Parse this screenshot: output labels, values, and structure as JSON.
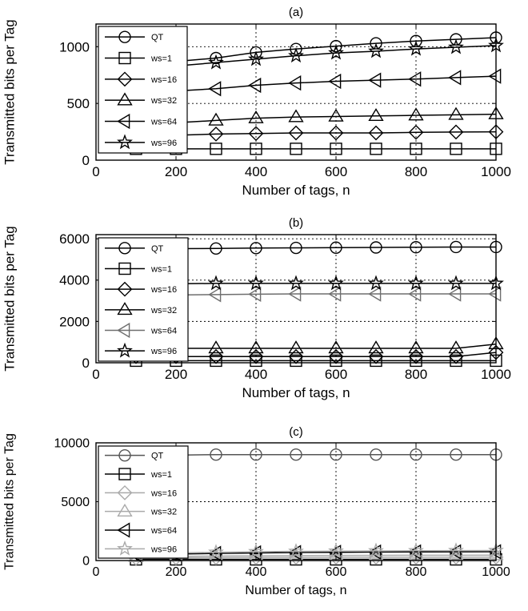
{
  "chart_data": [
    {
      "type": "line",
      "title": "(a)",
      "xlabel": "Number of tags, n",
      "ylabel": "Transmitted bits per Tag",
      "xlim": [
        0,
        1000
      ],
      "ylim": [
        0,
        1200
      ],
      "xticks": [
        0,
        200,
        400,
        600,
        800,
        1000
      ],
      "yticks": [
        0,
        500,
        1000
      ],
      "grid": true,
      "legend": "top-left",
      "x": [
        100,
        200,
        300,
        400,
        500,
        600,
        700,
        800,
        900,
        1000
      ],
      "series": [
        {
          "name": "QT",
          "marker": "circle",
          "color": "#000000",
          "values": [
            820,
            870,
            900,
            950,
            980,
            1005,
            1030,
            1050,
            1065,
            1080
          ]
        },
        {
          "name": "ws=1",
          "marker": "square",
          "color": "#000000",
          "values": [
            100,
            100,
            100,
            100,
            100,
            100,
            100,
            100,
            100,
            100
          ]
        },
        {
          "name": "ws=16",
          "marker": "diamond",
          "color": "#000000",
          "values": [
            200,
            220,
            230,
            235,
            240,
            240,
            240,
            245,
            248,
            250
          ]
        },
        {
          "name": "ws=32",
          "marker": "triangle-up",
          "color": "#000000",
          "values": [
            310,
            330,
            350,
            370,
            380,
            385,
            390,
            395,
            400,
            405
          ]
        },
        {
          "name": "ws=64",
          "marker": "triangle-left",
          "color": "#000000",
          "values": [
            590,
            610,
            630,
            660,
            680,
            695,
            705,
            715,
            728,
            740
          ]
        },
        {
          "name": "ws=96",
          "marker": "star",
          "color": "#000000",
          "values": [
            790,
            830,
            860,
            890,
            920,
            945,
            960,
            980,
            995,
            1010
          ]
        }
      ]
    },
    {
      "type": "line",
      "title": "(b)",
      "xlabel": "Number of tags, n",
      "ylabel": "Transmitted bits per Tag",
      "xlim": [
        0,
        1000
      ],
      "ylim": [
        0,
        6200
      ],
      "xticks": [
        0,
        200,
        400,
        600,
        800,
        1000
      ],
      "yticks": [
        0,
        2000,
        4000,
        6000
      ],
      "grid": true,
      "legend": "top-left",
      "x": [
        100,
        200,
        300,
        400,
        500,
        600,
        700,
        800,
        900,
        1000
      ],
      "series": [
        {
          "name": "QT",
          "marker": "circle",
          "color": "#000000",
          "values": [
            5500,
            5520,
            5530,
            5550,
            5560,
            5570,
            5580,
            5590,
            5600,
            5600
          ]
        },
        {
          "name": "ws=1",
          "marker": "square",
          "color": "#000000",
          "values": [
            100,
            100,
            100,
            100,
            100,
            100,
            100,
            100,
            100,
            100
          ]
        },
        {
          "name": "ws=16",
          "marker": "diamond",
          "color": "#000000",
          "values": [
            300,
            300,
            300,
            300,
            300,
            300,
            300,
            300,
            300,
            500
          ]
        },
        {
          "name": "ws=32",
          "marker": "triangle-up",
          "color": "#000000",
          "values": [
            700,
            700,
            700,
            700,
            700,
            700,
            700,
            700,
            700,
            900
          ]
        },
        {
          "name": "ws=64",
          "marker": "triangle-left",
          "color": "#6e6e6e",
          "values": [
            3250,
            3280,
            3300,
            3320,
            3330,
            3330,
            3330,
            3330,
            3330,
            3330
          ]
        },
        {
          "name": "ws=96",
          "marker": "star",
          "color": "#000000",
          "values": [
            3800,
            3820,
            3840,
            3840,
            3840,
            3840,
            3840,
            3840,
            3840,
            3840
          ]
        }
      ]
    },
    {
      "type": "line",
      "title": "(c)",
      "xlabel": "Number of tags, n",
      "ylabel": "Transmitted bits per Tag",
      "xlim": [
        0,
        1000
      ],
      "ylim": [
        0,
        10000
      ],
      "xticks": [
        0,
        200,
        400,
        600,
        800,
        1000
      ],
      "yticks": [
        0,
        5000,
        10000
      ],
      "grid": true,
      "legend": "top-left",
      "x": [
        100,
        200,
        300,
        400,
        500,
        600,
        700,
        800,
        900,
        1000
      ],
      "series": [
        {
          "name": "QT",
          "marker": "circle",
          "color": "#555555",
          "values": [
            8900,
            8950,
            9000,
            9000,
            9000,
            9000,
            9000,
            9000,
            9000,
            9000
          ]
        },
        {
          "name": "ws=1",
          "marker": "square",
          "color": "#000000",
          "values": [
            100,
            100,
            100,
            100,
            100,
            100,
            100,
            100,
            100,
            100
          ]
        },
        {
          "name": "ws=16",
          "marker": "diamond",
          "color": "#aaaaaa",
          "values": [
            200,
            230,
            250,
            260,
            270,
            280,
            280,
            280,
            280,
            290
          ]
        },
        {
          "name": "ws=32",
          "marker": "triangle-up",
          "color": "#aaaaaa",
          "values": [
            300,
            350,
            380,
            400,
            420,
            430,
            440,
            450,
            450,
            460
          ]
        },
        {
          "name": "ws=64",
          "marker": "triangle-left",
          "color": "#000000",
          "values": [
            500,
            550,
            600,
            650,
            680,
            700,
            720,
            730,
            740,
            750
          ]
        },
        {
          "name": "ws=96",
          "marker": "star",
          "color": "#aaaaaa",
          "values": [
            600,
            650,
            700,
            750,
            780,
            800,
            820,
            830,
            840,
            850
          ]
        }
      ]
    }
  ]
}
